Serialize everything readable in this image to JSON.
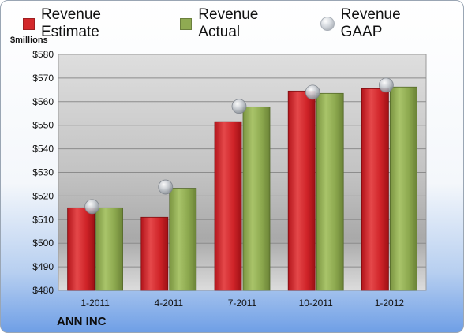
{
  "chart_data": {
    "type": "bar",
    "title": "",
    "ylabel": "$millions",
    "xlabel": "",
    "categories": [
      "1-2011",
      "4-2011",
      "7-2011",
      "10-2011",
      "1-2012"
    ],
    "series": [
      {
        "name": "Revenue Estimate",
        "kind": "bar",
        "color": "#d3282b",
        "values": [
          515,
          511,
          551.5,
          564.5,
          565.5
        ]
      },
      {
        "name": "Revenue Actual",
        "kind": "bar",
        "color": "#8faa52",
        "values": [
          515,
          523.3,
          557.8,
          563.5,
          566.2
        ]
      },
      {
        "name": "Revenue GAAP",
        "kind": "marker",
        "color": "#c7cbd0",
        "values": [
          515.5,
          523.8,
          558,
          564,
          567
        ]
      }
    ],
    "ylim": [
      480,
      580
    ],
    "yticks": [
      "$480",
      "$490",
      "$500",
      "$510",
      "$520",
      "$530",
      "$540",
      "$550",
      "$560",
      "$570",
      "$580"
    ],
    "ytick_values": [
      480,
      490,
      500,
      510,
      520,
      530,
      540,
      550,
      560,
      570,
      580
    ],
    "grid": true,
    "legend": "top"
  },
  "company": "ANN INC"
}
